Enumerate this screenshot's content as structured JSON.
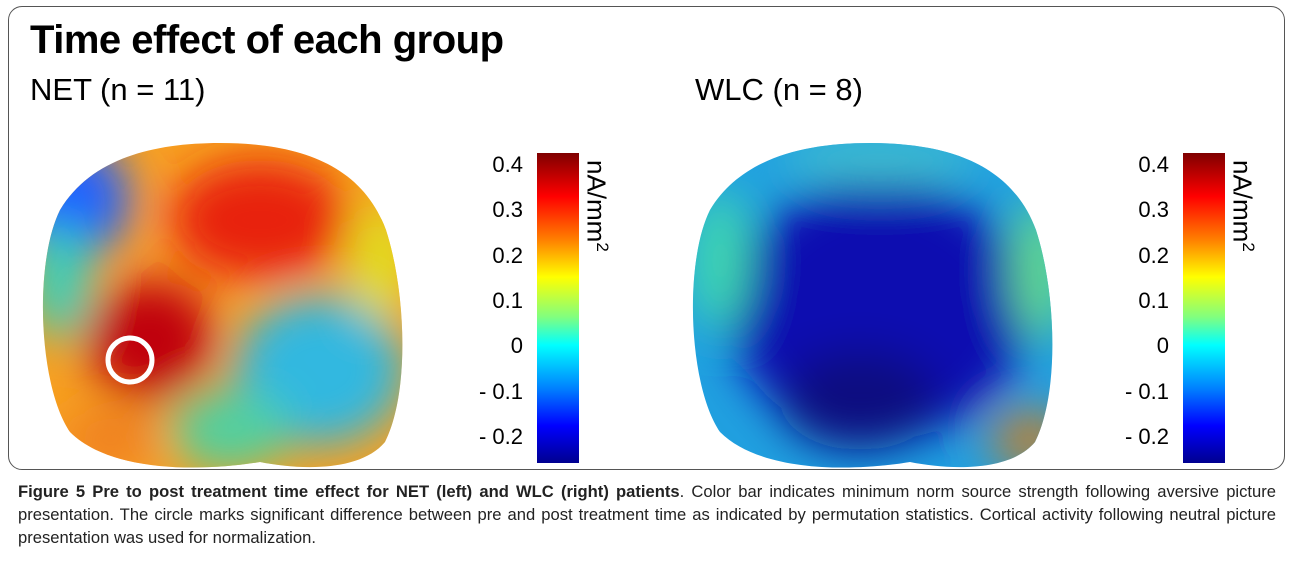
{
  "figure": {
    "title": "Time effect of each group",
    "panels": [
      {
        "label": "NET (n = 11)",
        "colorbar": {
          "ticks": [
            "0.4",
            "0.3",
            "0.2",
            "0.1",
            "0",
            "- 0.1",
            "- 0.2"
          ],
          "unit": "nA/mm",
          "unit_exponent": "2"
        }
      },
      {
        "label": "WLC (n = 8)",
        "colorbar": {
          "ticks": [
            "0.4",
            "0.3",
            "0.2",
            "0.1",
            "0",
            "- 0.1",
            "- 0.2"
          ],
          "unit": "nA/mm",
          "unit_exponent": "2"
        }
      }
    ],
    "caption": {
      "heading": "Figure 5 Pre to post treatment time effect for NET (left) and WLC (right) patients",
      "text": ". Color bar indicates minimum norm source strength following aversive picture presentation. The circle marks significant difference between pre and post treatment time as indicated by permutation statistics. Cortical activity following neutral picture presentation was used for normalization."
    }
  }
}
